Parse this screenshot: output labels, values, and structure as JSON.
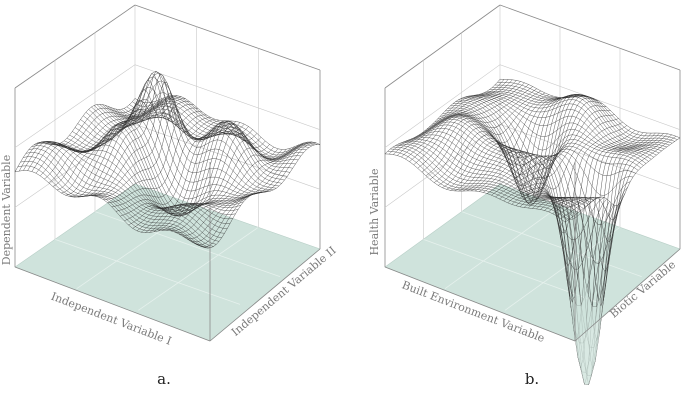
{
  "chart_data": [
    {
      "type": "surface",
      "panel": "a.",
      "title": "",
      "xlabel": "Independent Variable I",
      "ylabel": "Independent Variable II",
      "zlabel": "Dependent Variable",
      "grid": true,
      "floor_color": "#cfe3dc",
      "surface_color": "#2b2b2b",
      "note": "Wireframe surface with one tall central peak and smaller ridges; all values above the floor"
    },
    {
      "type": "surface",
      "panel": "b.",
      "title": "",
      "xlabel": "Built Environment Variable",
      "ylabel": "Biotic Variable",
      "zlabel": "Health Variable",
      "grid": true,
      "floor_color": "#cfe3dc",
      "surface_color": "#2b2b2b",
      "note": "Wireframe surface with a deep pit descending below the floor near the right, and a smaller dip in the middle"
    }
  ]
}
